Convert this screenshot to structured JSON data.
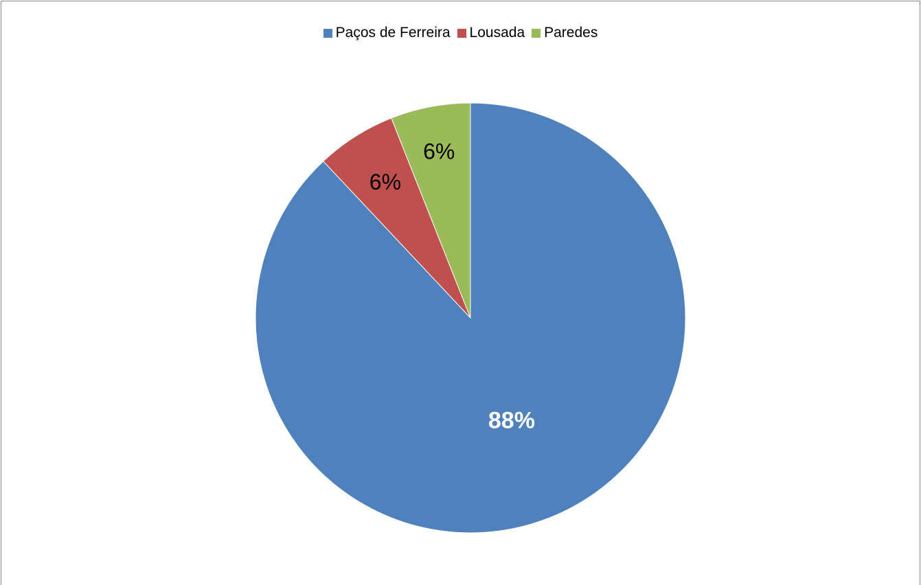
{
  "chart_data": {
    "type": "pie",
    "title": "",
    "categories": [
      "Paços de Ferreira",
      "Lousada",
      "Paredes"
    ],
    "values": [
      88,
      6,
      6
    ],
    "labels": [
      "88%",
      "6%",
      "6%"
    ],
    "colors": [
      "#4F81BD",
      "#C0504D",
      "#9BBB59"
    ],
    "label_colors": [
      "#ffffff",
      "#000000",
      "#000000"
    ],
    "legend_position": "top",
    "start_angle_deg": 0,
    "direction": "clockwise"
  }
}
